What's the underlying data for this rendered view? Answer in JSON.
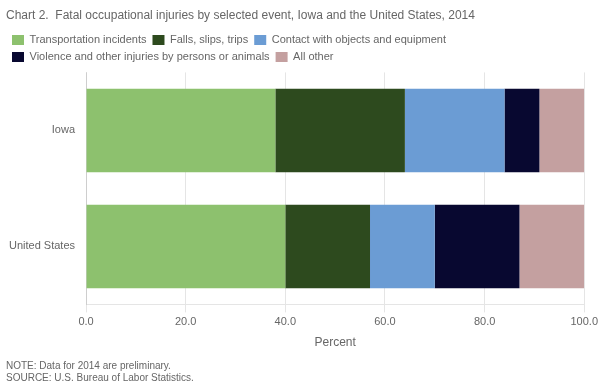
{
  "chart_data": {
    "type": "bar",
    "orientation": "horizontal",
    "stacked": true,
    "title": "Chart 2.  Fatal occupational injuries by selected event, Iowa and the United States, 2014",
    "categories": [
      "Iowa",
      "United States"
    ],
    "series": [
      {
        "name": "Transportation incidents",
        "color": "#8dc16e",
        "values": [
          38.0,
          40.0
        ]
      },
      {
        "name": "Falls, slips, trips",
        "color": "#2d4a1e",
        "values": [
          26.0,
          17.0
        ]
      },
      {
        "name": "Contact with objects and equipment",
        "color": "#6b9cd4",
        "values": [
          20.0,
          13.0
        ]
      },
      {
        "name": "Violence and other injuries by persons or animals",
        "color": "#080830",
        "values": [
          7.0,
          17.0
        ]
      },
      {
        "name": "All other",
        "color": "#c4a0a0",
        "values": [
          9.0,
          13.0
        ]
      }
    ],
    "xlabel": "Percent",
    "xlim": [
      0,
      100
    ],
    "xticks": [
      {
        "value": 0,
        "label": "0.0"
      },
      {
        "value": 20,
        "label": "20.0"
      },
      {
        "value": 40,
        "label": "40.0"
      },
      {
        "value": 60,
        "label": "60.0"
      },
      {
        "value": 80,
        "label": "80.0"
      },
      {
        "value": 100,
        "label": "100.0"
      }
    ],
    "grid": true,
    "legend": "upper left",
    "annotations": [
      "NOTE: Data for 2014 are preliminary.",
      "SOURCE: U.S. Bureau of Labor Statistics."
    ]
  }
}
